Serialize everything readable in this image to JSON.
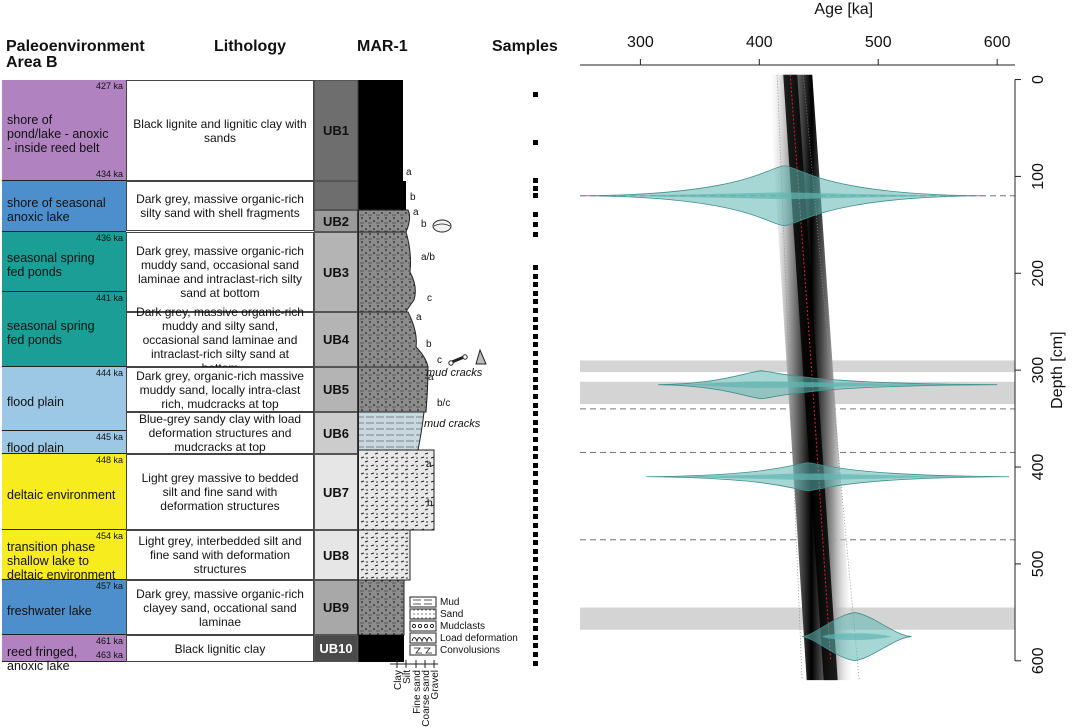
{
  "headers": {
    "paleo_line1": "Paleoenvironment",
    "paleo_line2": "Area B",
    "lithology": "Lithology",
    "core": "MAR-1",
    "samples": "Samples"
  },
  "environments": [
    {
      "label": "shore of pond/lake - anoxic - inside reed belt",
      "lines": [
        "shore of",
        "pond/lake - anoxic",
        "- inside reed belt"
      ],
      "top_ka": "427 ka",
      "bottom_ka": "434 ka",
      "color": "#b082c0"
    },
    {
      "label": "shore of seasonal anoxic lake",
      "lines": [
        "shore of seasonal",
        "anoxic lake"
      ],
      "top_ka": "",
      "bottom_ka": "",
      "color": "#4d8fcc"
    },
    {
      "label": "seasonal spring fed ponds",
      "lines": [
        "seasonal spring",
        "fed ponds"
      ],
      "top_ka": "436 ka",
      "bottom_ka": "",
      "color": "#1a9e96"
    },
    {
      "label": "seasonal spring fed ponds",
      "lines": [
        "seasonal spring",
        "fed ponds"
      ],
      "top_ka": "441 ka",
      "bottom_ka": "",
      "color": "#1a9e96"
    },
    {
      "label": "flood plain",
      "lines": [
        "flood plain"
      ],
      "top_ka": "444 ka",
      "bottom_ka": "",
      "color": "#9cc8e6"
    },
    {
      "label": "flood plain",
      "lines": [
        "flood plain"
      ],
      "top_ka": "445 ka",
      "bottom_ka": "",
      "color": "#9cc8e6"
    },
    {
      "label": "deltaic environment",
      "lines": [
        "deltaic environment"
      ],
      "top_ka": "448 ka",
      "bottom_ka": "",
      "color": "#f6ec1e"
    },
    {
      "label": "transition phase shallow lake to deltaic environment",
      "lines": [
        "transition phase",
        "shallow lake to",
        "deltaic environment"
      ],
      "top_ka": "454 ka",
      "bottom_ka": "",
      "color": "#f6ec1e"
    },
    {
      "label": "freshwater lake",
      "lines": [
        "freshwater lake"
      ],
      "top_ka": "457 ka",
      "bottom_ka": "",
      "color": "#4d8fcc"
    },
    {
      "label": "reed fringed, anoxic lake",
      "lines": [
        "reed fringed,",
        "anoxic lake"
      ],
      "top_ka": "461 ka",
      "bottom_ka": "463 ka",
      "color": "#b082c0"
    }
  ],
  "lithology": [
    {
      "unit": "UB1",
      "text": "Black lignite and lignitic clay with sands",
      "shade": "#6e6e6e"
    },
    {
      "unit": "",
      "text": "Dark grey, massive organic-rich silty sand with shell fragments",
      "shade": "#6e6e6e"
    },
    {
      "unit": "UB2",
      "text": "",
      "shade": "#9a9a9a"
    },
    {
      "unit": "UB3",
      "text": "Dark grey, massive organic-rich muddy sand, occasional sand laminae and intraclast-rich silty sand at bottom",
      "shade": "#b4b4b4"
    },
    {
      "unit": "UB4",
      "text": "Dark grey, massive organic-rich muddy and silty sand, occasional sand laminae and intraclast-rich silty sand at bottom",
      "shade": "#b4b4b4"
    },
    {
      "unit": "UB5",
      "text": "Dark grey, organic-rich massive muddy sand, locally intra-clast rich, mudcracks at top",
      "shade": "#b4b4b4"
    },
    {
      "unit": "UB6",
      "text": "Blue-grey sandy clay with load deformation structures and mudcracks at top",
      "shade": "#cccccc"
    },
    {
      "unit": "UB7",
      "text": "Light grey massive to bedded silt and fine sand with deformation structures",
      "shade": "#e6e6e6"
    },
    {
      "unit": "UB8",
      "text": "Light grey, interbedded silt and fine sand with deformation structures",
      "shade": "#e6e6e6"
    },
    {
      "unit": "UB9",
      "text": "Dark grey, massive organic-rich clayey sand, occational sand laminae",
      "shade": "#a8a8a8"
    },
    {
      "unit": "UB10",
      "text": "Black lignitic clay",
      "shade": "#4a4a4a"
    }
  ],
  "core_annotations": {
    "letters": [
      "a",
      "b",
      "a",
      "b",
      "a/b",
      "c",
      "a",
      "b",
      "c",
      "a",
      "b/c",
      "a",
      "b"
    ],
    "mud_cracks_1": "mud cracks",
    "mud_cracks_2": "mud cracks"
  },
  "legend": [
    "Mud",
    "Sand",
    "Mudclasts",
    "Load deformation",
    "Convolusions"
  ],
  "grain_size_labels": [
    "Clay",
    "Silt",
    "Fine sand",
    "Coarse sand",
    "Gravel"
  ],
  "chart_data": {
    "type": "age-depth model",
    "xlabel": "Age [ka]",
    "ylabel": "Depth [cm]",
    "x_ticks": [
      300,
      400,
      500,
      600
    ],
    "y_ticks": [
      0,
      100,
      200,
      300,
      400,
      500,
      600
    ],
    "xlim": [
      245,
      615
    ],
    "ylim": [
      -15,
      625
    ],
    "model_median": [
      [
        426,
        -5
      ],
      [
        444,
        300
      ],
      [
        460,
        600
      ]
    ],
    "model_bounds_inner": [
      [
        [
          415,
          -5
        ],
        [
          436,
          620
        ]
      ],
      [
        [
          437,
          -5
        ],
        [
          484,
          620
        ]
      ]
    ],
    "dated_samples": [
      {
        "depth": 120,
        "age_peak": 421,
        "age_range": [
          250,
          590
        ]
      },
      {
        "depth": 315,
        "age_peak": 402,
        "age_range": [
          315,
          600
        ]
      },
      {
        "depth": 410,
        "age_peak": 441,
        "age_range": [
          305,
          610
        ]
      },
      {
        "depth": 575,
        "age_peak": 480,
        "age_range": [
          436,
          528
        ]
      }
    ],
    "gray_bands": [
      [
        290,
        302
      ],
      [
        312,
        335
      ],
      [
        545,
        568
      ]
    ],
    "dashed_depths": [
      120,
      340,
      385,
      475
    ],
    "colors": {
      "pdf_fill": "#5fb7b2",
      "median": "#e0203a",
      "band": "#d4d4d4"
    }
  }
}
